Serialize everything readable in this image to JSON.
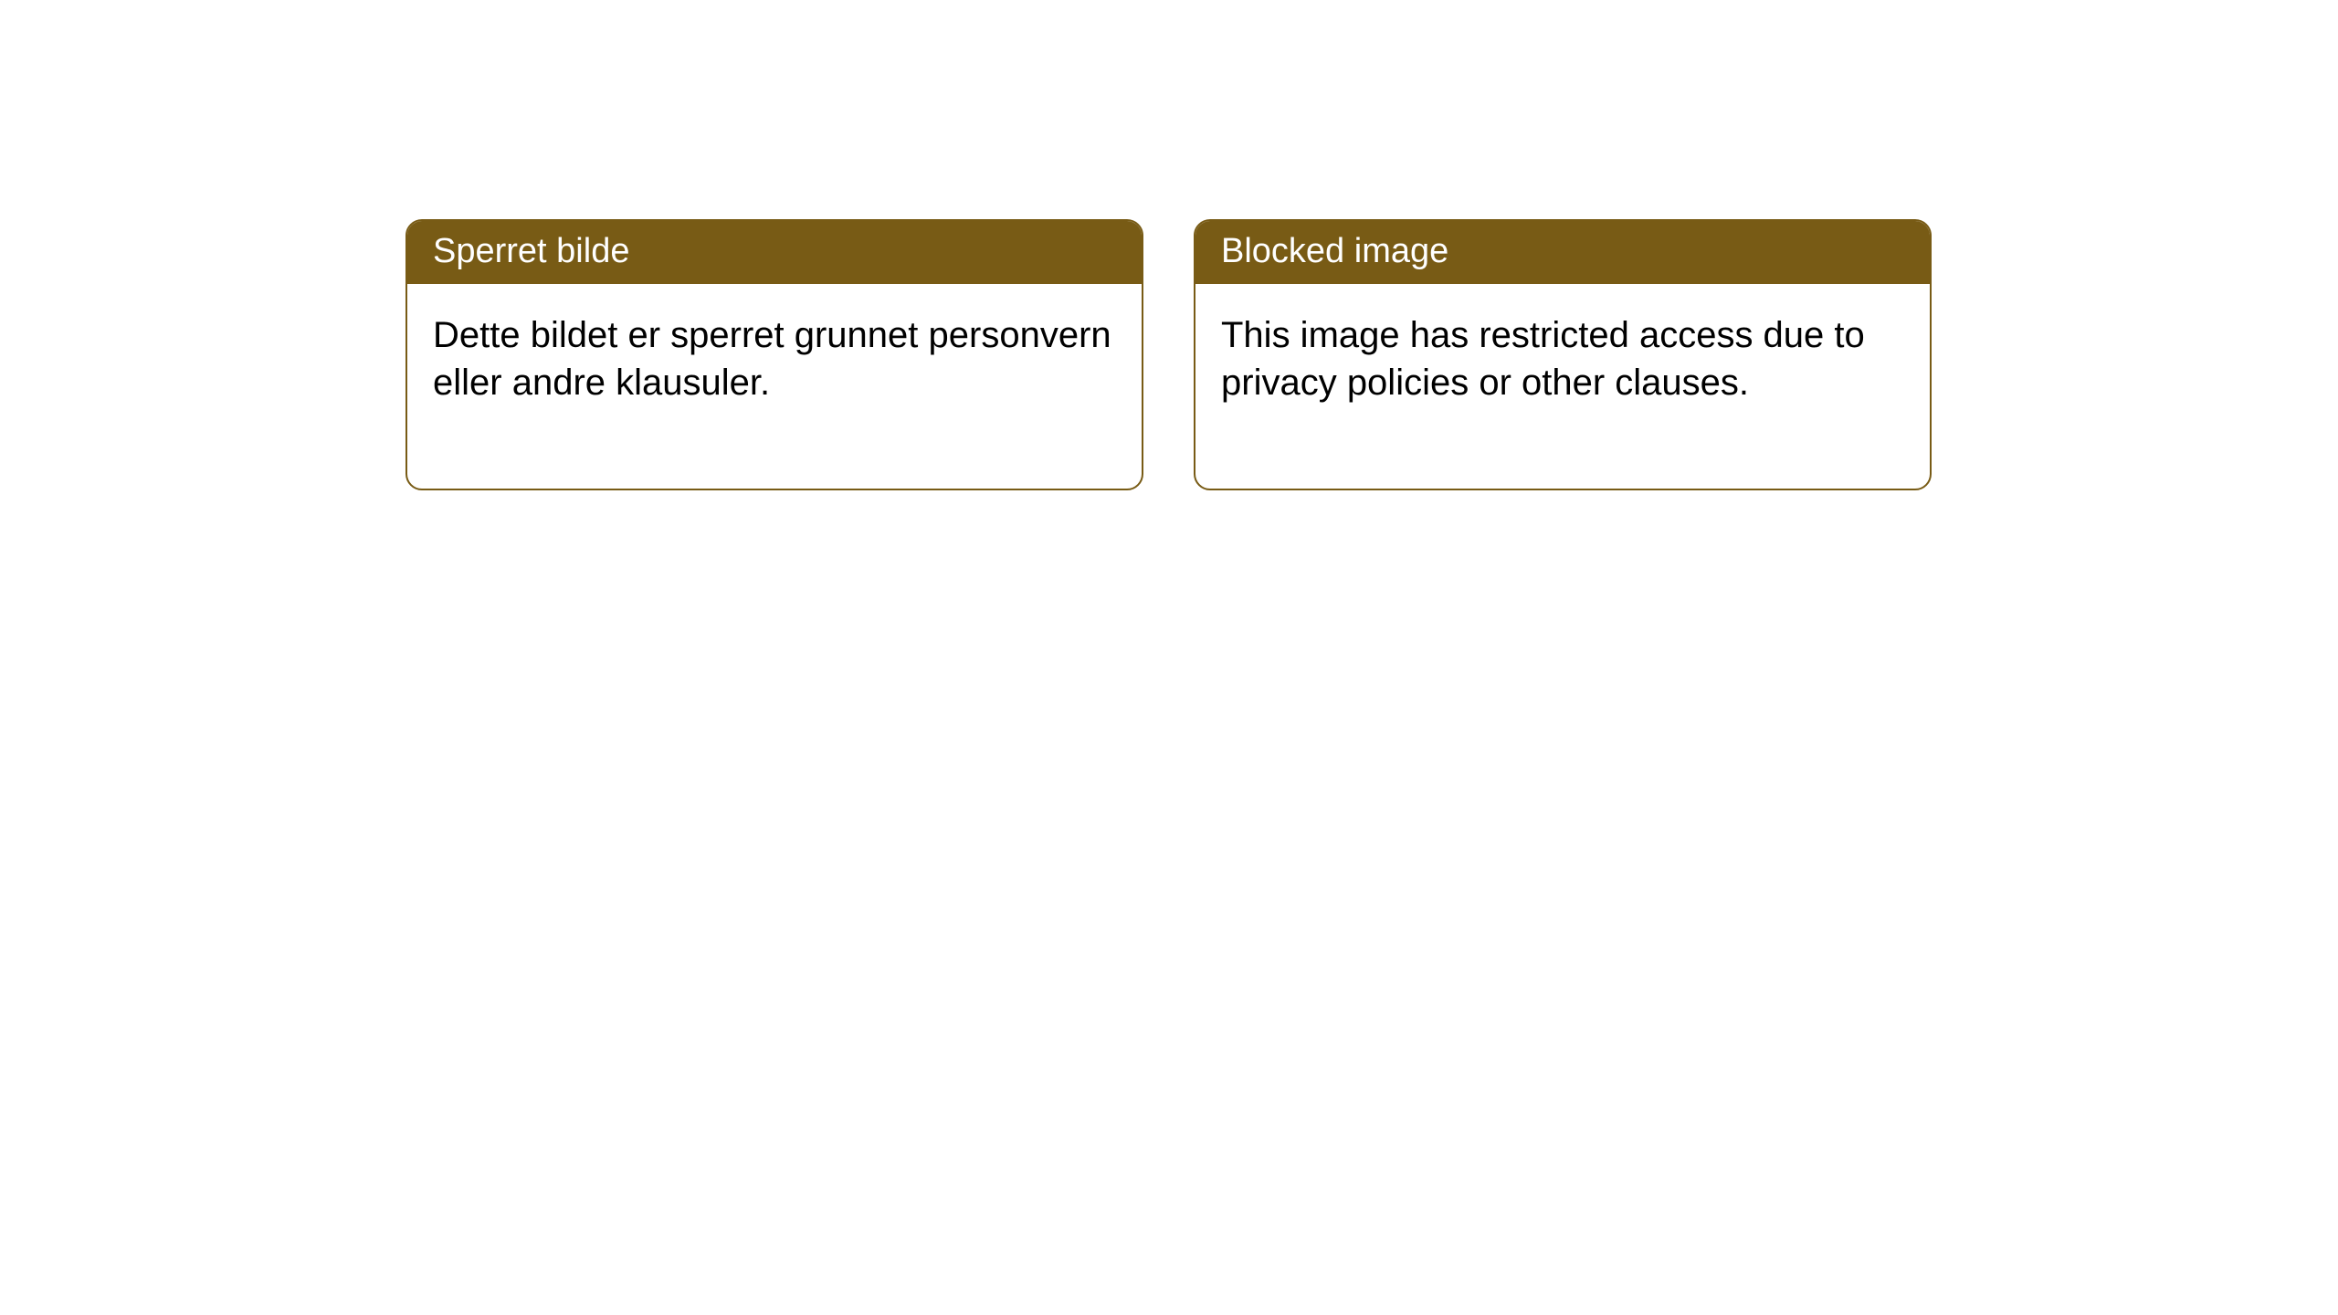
{
  "notices": [
    {
      "title": "Sperret bilde",
      "body": "Dette bildet er sperret grunnet personvern eller andre klausuler."
    },
    {
      "title": "Blocked image",
      "body": "This image has restricted access due to privacy policies or other clauses."
    }
  ],
  "styling": {
    "header_bg_color": "#785b15",
    "header_text_color": "#ffffff",
    "box_border_color": "#785b15",
    "box_bg_color": "#ffffff",
    "body_text_color": "#000000",
    "page_bg_color": "#ffffff",
    "border_radius": 18,
    "title_fontsize": 38,
    "body_fontsize": 40
  }
}
